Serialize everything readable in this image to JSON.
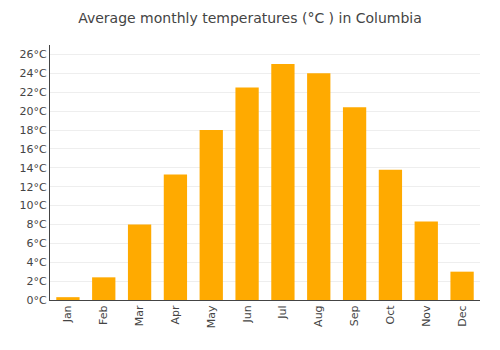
{
  "chart_data": {
    "type": "bar",
    "title": "Average monthly temperatures (°C ) in Columbia",
    "categories": [
      "Jan",
      "Feb",
      "Mar",
      "Apr",
      "May",
      "Jun",
      "Jul",
      "Aug",
      "Sep",
      "Oct",
      "Nov",
      "Dec"
    ],
    "values": [
      0.3,
      2.4,
      8.0,
      13.3,
      18.0,
      22.5,
      25.0,
      24.0,
      20.4,
      13.8,
      8.3,
      3.0
    ],
    "color": "#FFAA00",
    "ylim": [
      0,
      27
    ],
    "yticks": [
      {
        "value": 0,
        "label": "0°C"
      },
      {
        "value": 2,
        "label": "2°C"
      },
      {
        "value": 4,
        "label": "4°C"
      },
      {
        "value": 6,
        "label": "6°C"
      },
      {
        "value": 8,
        "label": "8°C"
      },
      {
        "value": 10,
        "label": "10°C"
      },
      {
        "value": 12,
        "label": "12°C"
      },
      {
        "value": 14,
        "label": "14°C"
      },
      {
        "value": 16,
        "label": "16°C"
      },
      {
        "value": 18,
        "label": "18°C"
      },
      {
        "value": 20,
        "label": "20°C"
      },
      {
        "value": 22,
        "label": "22°C"
      },
      {
        "value": 24,
        "label": "24°C"
      },
      {
        "value": 26,
        "label": "26°C"
      }
    ],
    "grid": true
  }
}
